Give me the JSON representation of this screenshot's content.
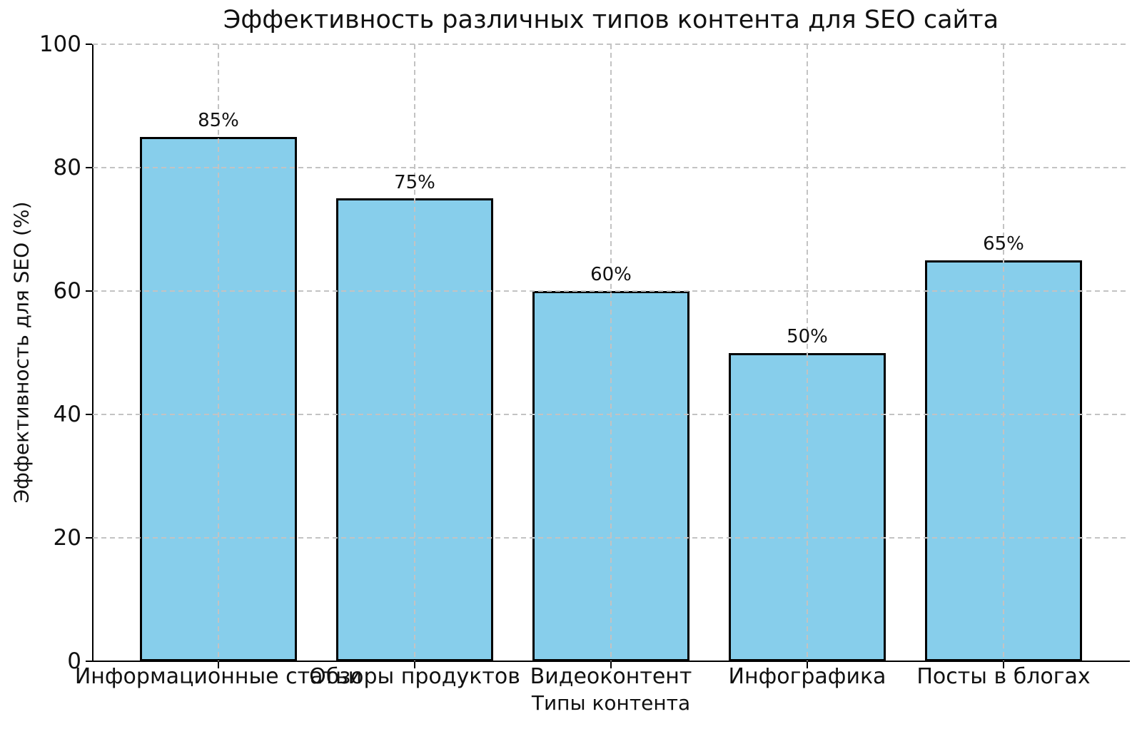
{
  "chart_data": {
    "type": "bar",
    "title": "Эффективность различных типов контента для SEO сайта",
    "xlabel": "Типы контента",
    "ylabel": "Эффективность для SEO (%)",
    "categories": [
      "Информационные статьи",
      "Обзоры продуктов",
      "Видеоконтент",
      "Инфографика",
      "Посты в блогах"
    ],
    "values": [
      85,
      75,
      60,
      50,
      65
    ],
    "value_labels": [
      "85%",
      "75%",
      "60%",
      "50%",
      "65%"
    ],
    "ylim": [
      0,
      100
    ],
    "yticks": [
      0,
      20,
      40,
      60,
      80,
      100
    ],
    "ytick_labels": [
      "0",
      "20",
      "40",
      "60",
      "80",
      "100"
    ],
    "legend": "none",
    "grid": {
      "style": "dashed",
      "axes": "both",
      "drawn_above_bars": true
    },
    "colors": {
      "bar_fill": "#87CEEB",
      "bar_edge": "#000000",
      "grid": "#c3c3c3",
      "spine": "#000000",
      "text": "#111111",
      "background": "#ffffff"
    }
  }
}
